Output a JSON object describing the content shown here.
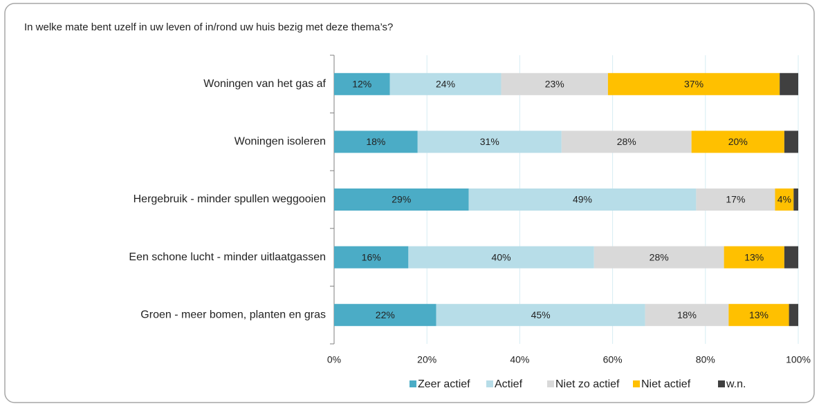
{
  "chart_data": {
    "type": "stacked_bar_horizontal",
    "title": "In welke mate bent uzelf in uw leven of in/rond uw huis bezig met deze thema’s?",
    "categories": [
      "Woningen van het gas af",
      "Woningen isoleren",
      "Hergebruik - minder spullen weggooien",
      "Een schone lucht - minder uitlaatgassen",
      "Groen - meer bomen, planten en gras"
    ],
    "series": [
      {
        "name": "Zeer actief",
        "color": "#4bacc6",
        "values": [
          12,
          18,
          29,
          16,
          22
        ],
        "value_labels": [
          "12%",
          "18%",
          "29%",
          "16%",
          "22%"
        ]
      },
      {
        "name": "Actief",
        "color": "#b7dde8",
        "values": [
          24,
          31,
          49,
          40,
          45
        ],
        "value_labels": [
          "24%",
          "31%",
          "49%",
          "40%",
          "45%"
        ]
      },
      {
        "name": "Niet zo actief",
        "color": "#d9d9d9",
        "values": [
          23,
          28,
          17,
          28,
          18
        ],
        "value_labels": [
          "23%",
          "28%",
          "17%",
          "28%",
          "18%"
        ]
      },
      {
        "name": "Niet actief",
        "color": "#ffc000",
        "values": [
          37,
          20,
          4,
          13,
          13
        ],
        "value_labels": [
          "37%",
          "20%",
          "4%",
          "13%",
          "13%"
        ]
      },
      {
        "name": "w.n.",
        "color": "#404040",
        "values": [
          4,
          3,
          1,
          3,
          2
        ]
      }
    ],
    "xlim": [
      0,
      100
    ],
    "xticks": [
      {
        "value": 0,
        "label": "0%"
      },
      {
        "value": 20,
        "label": "20%"
      },
      {
        "value": 40,
        "label": "40%"
      },
      {
        "value": 60,
        "label": "60%"
      },
      {
        "value": 80,
        "label": "80%"
      },
      {
        "value": 100,
        "label": "100%"
      }
    ],
    "grid": true,
    "legend": "bottom"
  }
}
